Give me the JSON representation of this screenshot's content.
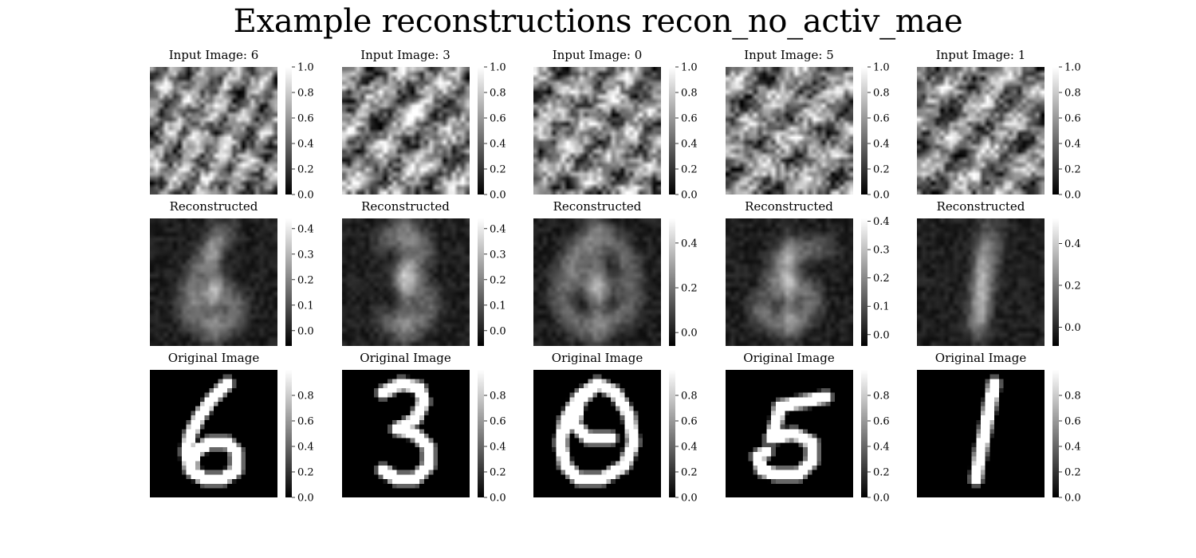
{
  "figure": {
    "title": "Example reconstructions recon_no_activ_mae",
    "colormap": "gray",
    "row_titles": [
      "Input Image: {digit}",
      "Reconstructed",
      "Original Image"
    ]
  },
  "chart_data": {
    "type": "heatmap",
    "image_size": 28,
    "columns": [
      {
        "digit": "6",
        "input": {
          "title": "Input Image: 6",
          "colorbar_range": [
            0,
            1.0
          ],
          "ticks": [
            "0.0",
            "0.2",
            "0.4",
            "0.6",
            "0.8",
            "1.0"
          ]
        },
        "reconstructed": {
          "title": "Reconstructed",
          "colorbar_range": [
            -0.06,
            0.44
          ],
          "ticks": [
            "0.0",
            "0.1",
            "0.2",
            "0.3",
            "0.4"
          ]
        },
        "original": {
          "title": "Original Image",
          "colorbar_range": [
            0,
            1.0
          ],
          "ticks": [
            "0.0",
            "0.2",
            "0.4",
            "0.6",
            "0.8"
          ]
        }
      },
      {
        "digit": "3",
        "input": {
          "title": "Input Image: 3",
          "colorbar_range": [
            0,
            1.0
          ],
          "ticks": [
            "0.0",
            "0.2",
            "0.4",
            "0.6",
            "0.8",
            "1.0"
          ]
        },
        "reconstructed": {
          "title": "Reconstructed",
          "colorbar_range": [
            -0.06,
            0.44
          ],
          "ticks": [
            "0.0",
            "0.1",
            "0.2",
            "0.3",
            "0.4"
          ]
        },
        "original": {
          "title": "Original Image",
          "colorbar_range": [
            0,
            1.0
          ],
          "ticks": [
            "0.0",
            "0.2",
            "0.4",
            "0.6",
            "0.8"
          ]
        }
      },
      {
        "digit": "0",
        "input": {
          "title": "Input Image: 0",
          "colorbar_range": [
            0,
            1.0
          ],
          "ticks": [
            "0.0",
            "0.2",
            "0.4",
            "0.6",
            "0.8",
            "1.0"
          ]
        },
        "reconstructed": {
          "title": "Reconstructed",
          "colorbar_range": [
            -0.06,
            0.51
          ],
          "ticks": [
            "0.0",
            "0.2",
            "0.4"
          ]
        },
        "original": {
          "title": "Original Image",
          "colorbar_range": [
            0,
            1.0
          ],
          "ticks": [
            "0.0",
            "0.2",
            "0.4",
            "0.6",
            "0.8"
          ]
        }
      },
      {
        "digit": "5",
        "input": {
          "title": "Input Image: 5",
          "colorbar_range": [
            0,
            1.0
          ],
          "ticks": [
            "0.0",
            "0.2",
            "0.4",
            "0.6",
            "0.8",
            "1.0"
          ]
        },
        "reconstructed": {
          "title": "Reconstructed",
          "colorbar_range": [
            -0.04,
            0.41
          ],
          "ticks": [
            "0.0",
            "0.1",
            "0.2",
            "0.3",
            "0.4"
          ]
        },
        "original": {
          "title": "Original Image",
          "colorbar_range": [
            0,
            1.0
          ],
          "ticks": [
            "0.0",
            "0.2",
            "0.4",
            "0.6",
            "0.8"
          ]
        }
      },
      {
        "digit": "1",
        "input": {
          "title": "Input Image: 1",
          "colorbar_range": [
            0,
            1.0
          ],
          "ticks": [
            "0.0",
            "0.2",
            "0.4",
            "0.6",
            "0.8",
            "1.0"
          ]
        },
        "reconstructed": {
          "title": "Reconstructed",
          "colorbar_range": [
            -0.09,
            0.52
          ],
          "ticks": [
            "0.0",
            "0.2",
            "0.4"
          ]
        },
        "original": {
          "title": "Original Image",
          "colorbar_range": [
            0,
            1.0
          ],
          "ticks": [
            "0.0",
            "0.2",
            "0.4",
            "0.6",
            "0.8"
          ]
        }
      }
    ]
  }
}
